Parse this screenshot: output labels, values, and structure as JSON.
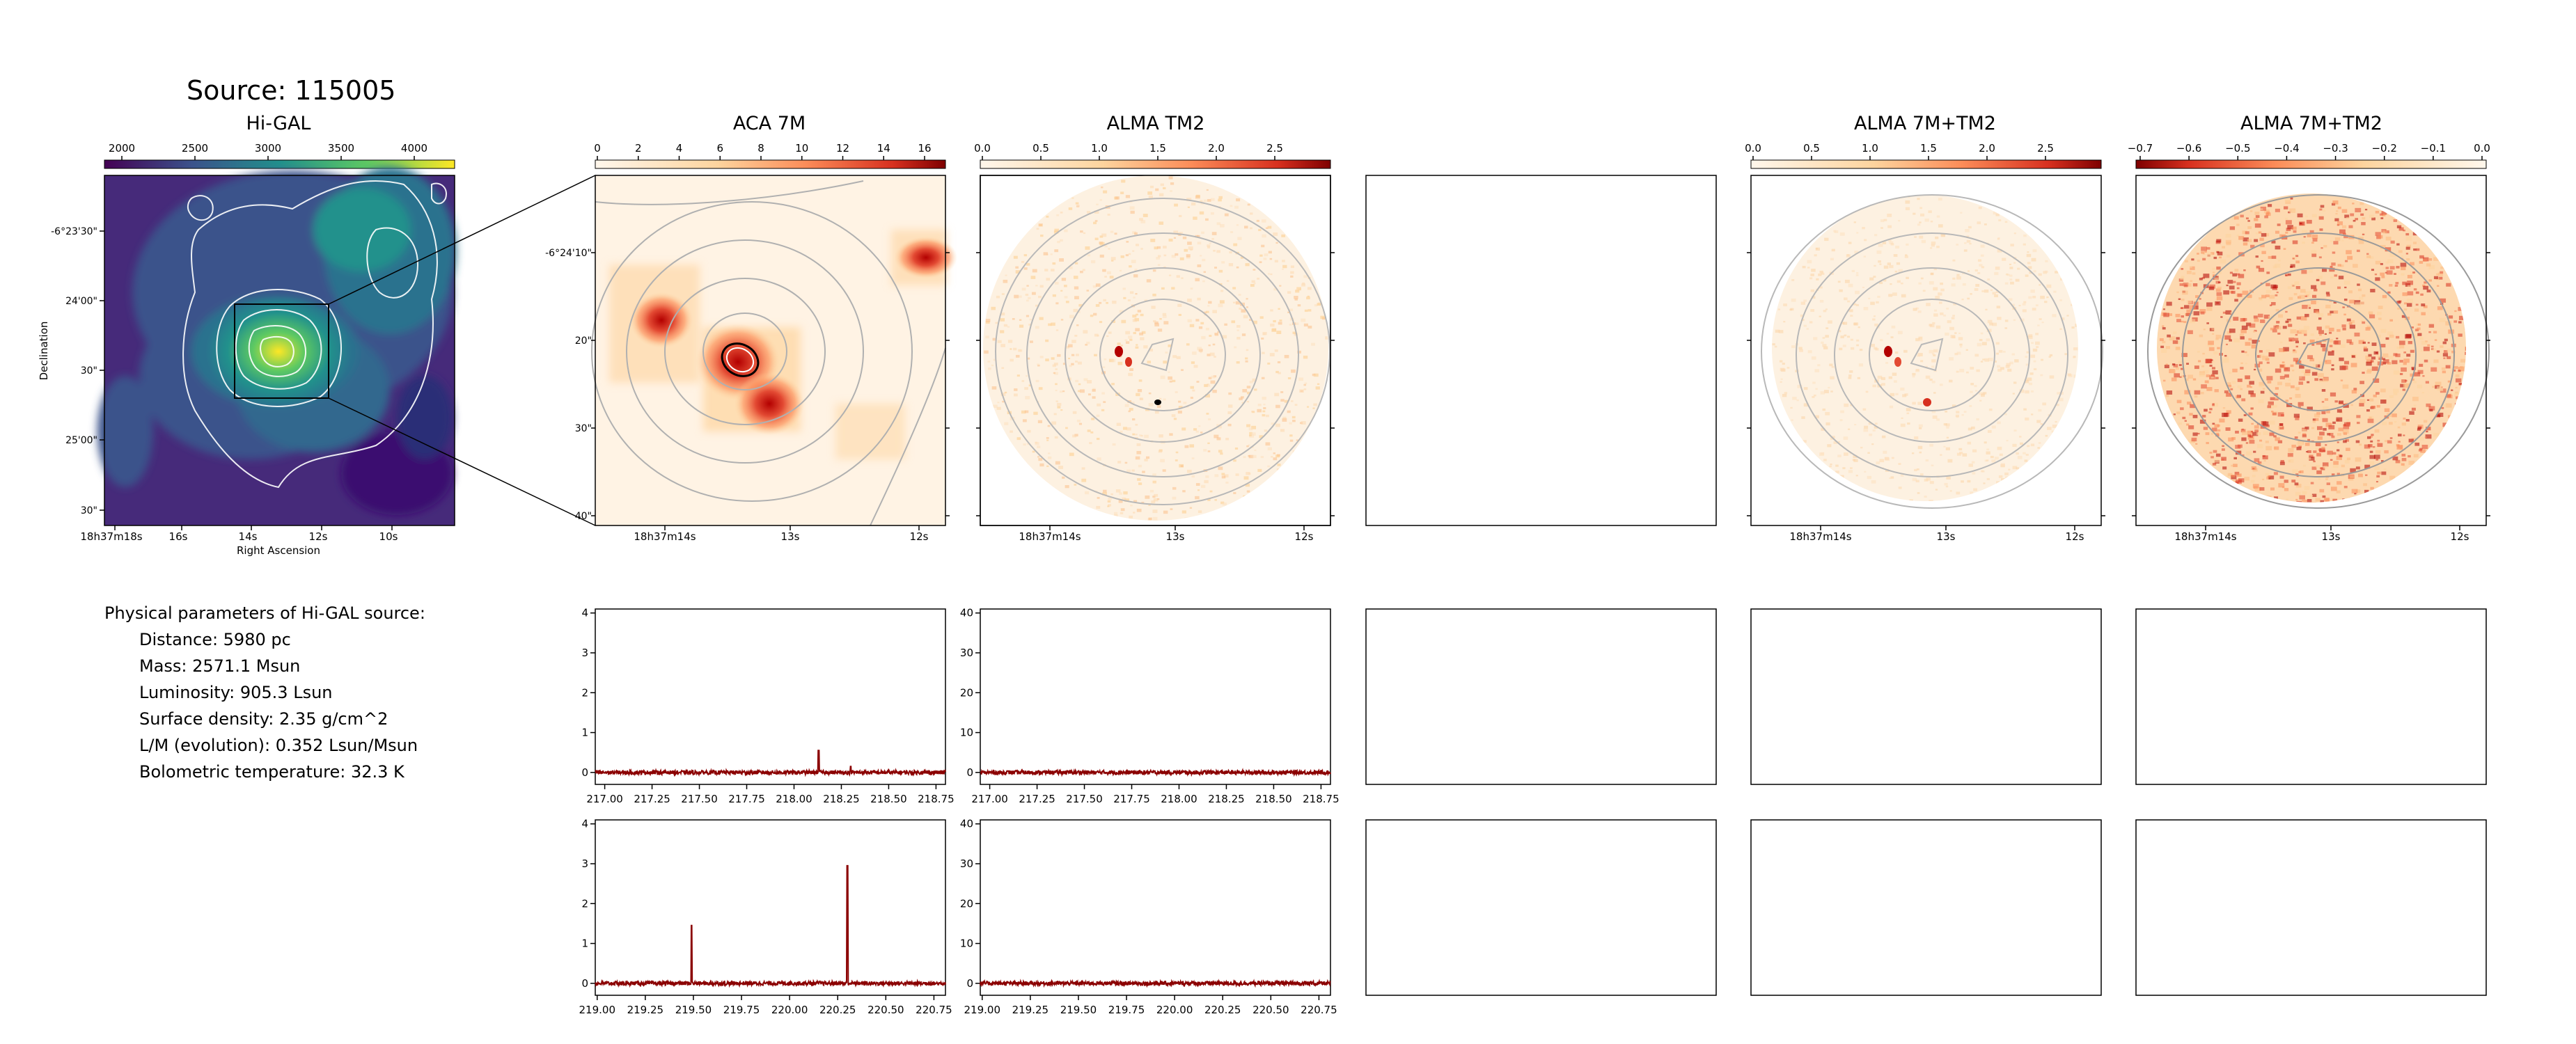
{
  "header": {
    "source_title": "Source: 115005"
  },
  "panels": {
    "higal_title": "Hi-GAL",
    "aca_title": "ACA 7M",
    "tm2_title": "ALMA TM2",
    "combo_title": "ALMA 7M+TM2",
    "combo2_title": "ALMA 7M+TM2"
  },
  "colorbars": {
    "higal": [
      "2000",
      "2500",
      "3000",
      "3500",
      "4000"
    ],
    "aca": [
      "0",
      "2",
      "4",
      "6",
      "8",
      "10",
      "12",
      "14",
      "16"
    ],
    "tm2": [
      "0.0",
      "0.5",
      "1.0",
      "1.5",
      "2.0",
      "2.5"
    ],
    "combo": [
      "0.0",
      "0.5",
      "1.0",
      "1.5",
      "2.0",
      "2.5"
    ],
    "combo2": [
      "−0.7",
      "−0.6",
      "−0.5",
      "−0.4",
      "−0.3",
      "−0.2",
      "−0.1",
      "0.0"
    ]
  },
  "axes": {
    "higal_x_ticks": [
      "18h37m18s",
      "16s",
      "14s",
      "12s",
      "10s"
    ],
    "higal_y_ticks": [
      "-6°23'30\"",
      "24'00\"",
      "30\"",
      "25'00\"",
      "30\""
    ],
    "higal_xlabel": "Right Ascension",
    "higal_ylabel": "Declination",
    "zoom_x_ticks": [
      "18h37m14s",
      "13s",
      "12s"
    ],
    "aca_y_ticks": [
      "-6°24'10\"",
      "20\"",
      "30\"",
      "40\""
    ]
  },
  "physical": {
    "heading": "Physical parameters of Hi-GAL source:",
    "lines": [
      "Distance: 5980 pc",
      "Mass: 2571.1 Msun",
      "Luminosity: 905.3 Lsun",
      "Surface density: 2.35 g/cm^2",
      "L/M (evolution): 0.352 Lsun/Msun",
      "Bolometric temperature: 32.3 K"
    ]
  },
  "colors": {
    "spectrum": "#8b0000",
    "contour_white": "#ffffff",
    "contour_grey": "#aaaaaa"
  },
  "chart_data": [
    {
      "type": "line",
      "panel": "aca-spectrum-1",
      "x_range": [
        216.95,
        218.8
      ],
      "xticks": [
        "217.00",
        "217.25",
        "217.50",
        "217.75",
        "218.00",
        "218.25",
        "218.50",
        "218.75"
      ],
      "ylim": [
        -0.3,
        4.1
      ],
      "yticks": [
        "0",
        "1",
        "2",
        "3",
        "4"
      ],
      "series": [
        {
          "baseline": 0,
          "noise": 0.05,
          "peaks": [
            {
              "x": 218.13,
              "y": 0.55
            },
            {
              "x": 218.3,
              "y": 0.15
            }
          ]
        }
      ]
    },
    {
      "type": "line",
      "panel": "tm2-spectrum-1",
      "x_range": [
        216.95,
        218.8
      ],
      "xticks": [
        "217.00",
        "217.25",
        "217.50",
        "217.75",
        "218.00",
        "218.25",
        "218.50",
        "218.75"
      ],
      "ylim": [
        -3,
        41
      ],
      "yticks": [
        "0",
        "10",
        "20",
        "30",
        "40"
      ],
      "series": [
        {
          "baseline": 0,
          "noise": 0.5,
          "peaks": []
        }
      ]
    },
    {
      "type": "line",
      "panel": "aca-spectrum-2",
      "x_range": [
        218.99,
        220.81
      ],
      "xticks": [
        "219.00",
        "219.25",
        "219.50",
        "219.75",
        "220.00",
        "220.25",
        "220.50",
        "220.75"
      ],
      "ylim": [
        -0.3,
        4.1
      ],
      "yticks": [
        "0",
        "1",
        "2",
        "3",
        "4"
      ],
      "series": [
        {
          "baseline": 0,
          "noise": 0.05,
          "peaks": [
            {
              "x": 219.49,
              "y": 1.45
            },
            {
              "x": 220.3,
              "y": 2.95
            }
          ]
        }
      ]
    },
    {
      "type": "line",
      "panel": "tm2-spectrum-2",
      "x_range": [
        218.99,
        220.81
      ],
      "xticks": [
        "219.00",
        "219.25",
        "219.50",
        "219.75",
        "220.00",
        "220.25",
        "220.50",
        "220.75"
      ],
      "ylim": [
        -3,
        41
      ],
      "yticks": [
        "0",
        "10",
        "20",
        "30",
        "40"
      ],
      "series": [
        {
          "baseline": 0,
          "noise": 0.5,
          "peaks": []
        }
      ]
    }
  ]
}
